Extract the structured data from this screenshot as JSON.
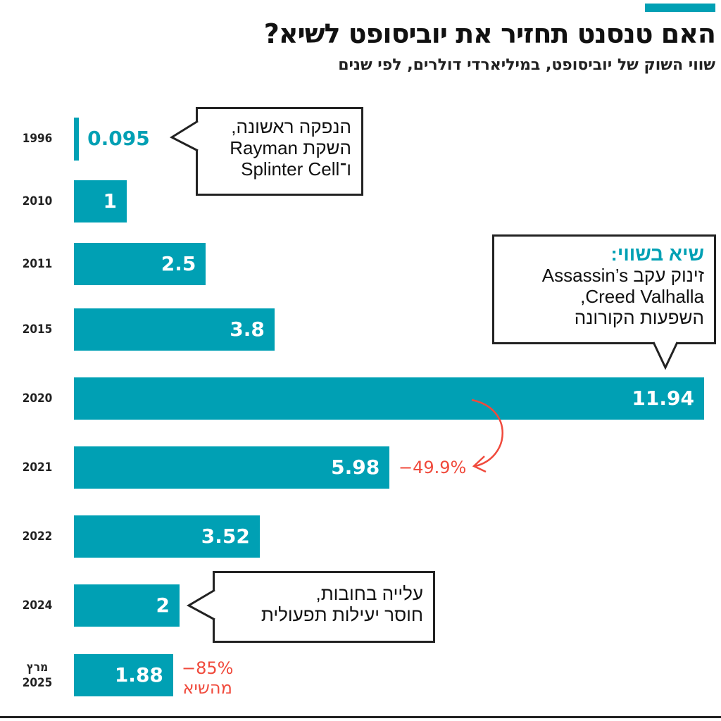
{
  "header": {
    "title": "האם טנסנט תחזיר את יוביסופט לשיא?",
    "subtitle": "שווי השוק של יוביסופט, במיליארדי דולרים, לפי שנים"
  },
  "colors": {
    "bar": "#00a0b4",
    "annotation": "#f04a3c"
  },
  "chart_data": {
    "type": "bar",
    "orientation": "horizontal",
    "title": "האם טנסנט תחזיר את יוביסופט לשיא?",
    "subtitle": "שווי השוק של יוביסופט, במיליארדי דולרים, לפי שנים",
    "categories": [
      "1996",
      "2010",
      "2011",
      "2015",
      "2020",
      "2021",
      "2022",
      "2024",
      "מרץ 2025"
    ],
    "category_lines": [
      [
        "1996"
      ],
      [
        "2010"
      ],
      [
        "2011"
      ],
      [
        "2015"
      ],
      [
        "2020"
      ],
      [
        "2021"
      ],
      [
        "2022"
      ],
      [
        "2024"
      ],
      [
        "מרץ",
        "2025"
      ]
    ],
    "values": [
      0.095,
      1,
      2.5,
      3.8,
      11.94,
      5.98,
      3.52,
      2,
      1.88
    ],
    "value_labels": [
      "0.095",
      "1",
      "2.5",
      "3.8",
      "11.94",
      "5.98",
      "3.52",
      "2",
      "1.88"
    ],
    "xlim": [
      0,
      11.94
    ],
    "grid": false,
    "annotations": {
      "callout_1996": [
        "הנפקה ראשונה,",
        "השקת Rayman",
        "ו־Splinter Cell"
      ],
      "callout_2020_title": "שיא בשווי:",
      "callout_2020": [
        "זינוק עקב Assassin’s",
        "Creed Valhalla,",
        "השפעות הקורונה"
      ],
      "callout_2024": [
        "עלייה בחובות,",
        "חוסר יעילות תפעולית"
      ],
      "change_2021": "−49.9%",
      "change_2025": [
        "−85%",
        "מהשיא"
      ]
    }
  }
}
